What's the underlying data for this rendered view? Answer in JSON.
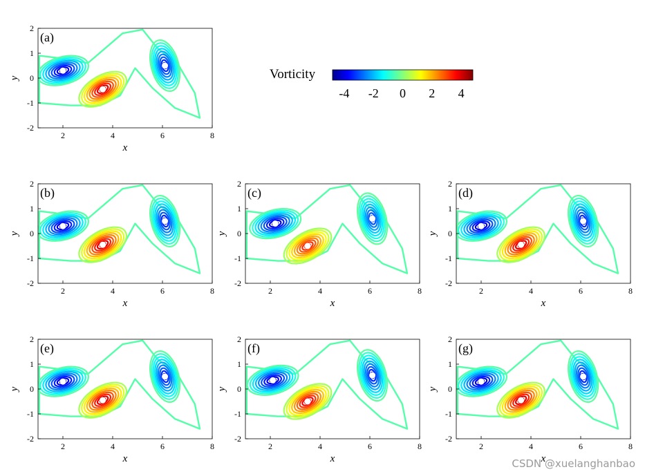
{
  "figure": {
    "colorbar": {
      "label": "Vorticity",
      "ticks": [
        "-4",
        "-2",
        "0",
        "2",
        "4"
      ],
      "range": [
        -4.8,
        4.8
      ],
      "colormap": "jet",
      "stops": [
        "#00008f",
        "#0000ff",
        "#00ffff",
        "#ffff00",
        "#ff0000",
        "#800000"
      ]
    },
    "watermark": "CSDN @xuelanghanbao"
  },
  "chart_data": [
    {
      "panel": "(a)",
      "type": "contour",
      "xlabel": "x",
      "ylabel": "y",
      "xlim": [
        1,
        8
      ],
      "ylim": [
        -2,
        2
      ],
      "xticks": [
        "2",
        "4",
        "6",
        "8"
      ],
      "yticks": [
        "2",
        "1",
        "0",
        "-1",
        "-2"
      ],
      "features": [
        {
          "name": "negative vortex",
          "x": 2.0,
          "y": 0.3,
          "peak": -4.8
        },
        {
          "name": "positive vortex",
          "x": 3.6,
          "y": -0.45,
          "peak": 4.8
        },
        {
          "name": "negative vortex",
          "x": 6.1,
          "y": 0.5,
          "peak": -4.0
        }
      ]
    },
    {
      "panel": "(b)",
      "type": "contour",
      "xlabel": "x",
      "ylabel": "y",
      "xlim": [
        1,
        8
      ],
      "ylim": [
        -2,
        2
      ],
      "xticks": [
        "2",
        "4",
        "6",
        "8"
      ],
      "yticks": [
        "2",
        "1",
        "0",
        "-1",
        "-2"
      ],
      "features": [
        {
          "name": "negative vortex",
          "x": 2.0,
          "y": 0.3,
          "peak": -4.8
        },
        {
          "name": "positive vortex",
          "x": 3.6,
          "y": -0.45,
          "peak": 4.8
        },
        {
          "name": "negative vortex",
          "x": 6.1,
          "y": 0.5,
          "peak": -4.0
        }
      ]
    },
    {
      "panel": "(c)",
      "type": "contour",
      "xlabel": "x",
      "ylabel": "y",
      "xlim": [
        1,
        8
      ],
      "ylim": [
        -2,
        2
      ],
      "xticks": [
        "2",
        "4",
        "6",
        "8"
      ],
      "yticks": [
        "2",
        "1",
        "0",
        "-1",
        "-2"
      ],
      "features": [
        {
          "name": "negative vortex",
          "x": 2.2,
          "y": 0.4,
          "peak": -4.8
        },
        {
          "name": "positive vortex",
          "x": 3.5,
          "y": -0.5,
          "peak": 4.0
        },
        {
          "name": "negative vortex",
          "x": 6.1,
          "y": 0.6,
          "peak": -3.5
        }
      ]
    },
    {
      "panel": "(d)",
      "type": "contour",
      "xlabel": "x",
      "ylabel": "y",
      "xlim": [
        1,
        8
      ],
      "ylim": [
        -2,
        2
      ],
      "xticks": [
        "2",
        "4",
        "6",
        "8"
      ],
      "yticks": [
        "2",
        "1",
        "0",
        "-1",
        "-2"
      ],
      "features": [
        {
          "name": "negative vortex",
          "x": 2.0,
          "y": 0.3,
          "peak": -4.8
        },
        {
          "name": "positive vortex",
          "x": 3.6,
          "y": -0.45,
          "peak": 4.8
        },
        {
          "name": "negative vortex",
          "x": 6.1,
          "y": 0.5,
          "peak": -4.0
        }
      ]
    },
    {
      "panel": "(e)",
      "type": "contour",
      "xlabel": "x",
      "ylabel": "y",
      "xlim": [
        1,
        8
      ],
      "ylim": [
        -2,
        2
      ],
      "xticks": [
        "2",
        "4",
        "6",
        "8"
      ],
      "yticks": [
        "2",
        "1",
        "0",
        "-1",
        "-2"
      ],
      "features": [
        {
          "name": "negative vortex",
          "x": 2.0,
          "y": 0.3,
          "peak": -4.8
        },
        {
          "name": "positive vortex",
          "x": 3.6,
          "y": -0.45,
          "peak": 4.8
        },
        {
          "name": "negative vortex",
          "x": 6.1,
          "y": 0.5,
          "peak": -4.0
        }
      ]
    },
    {
      "panel": "(f)",
      "type": "contour",
      "xlabel": "x",
      "ylabel": "y",
      "xlim": [
        1,
        8
      ],
      "ylim": [
        -2,
        2
      ],
      "xticks": [
        "2",
        "4",
        "6",
        "8"
      ],
      "yticks": [
        "2",
        "1",
        "0",
        "-1",
        "-2"
      ],
      "features": [
        {
          "name": "negative vortex",
          "x": 2.1,
          "y": 0.35,
          "peak": -4.8
        },
        {
          "name": "positive vortex",
          "x": 3.5,
          "y": -0.5,
          "peak": 4.5
        },
        {
          "name": "negative vortex",
          "x": 6.1,
          "y": 0.55,
          "peak": -4.0
        }
      ]
    },
    {
      "panel": "(g)",
      "type": "contour",
      "xlabel": "x",
      "ylabel": "y",
      "xlim": [
        1,
        8
      ],
      "ylim": [
        -2,
        2
      ],
      "xticks": [
        "2",
        "4",
        "6",
        "8"
      ],
      "yticks": [
        "2",
        "1",
        "0",
        "-1",
        "-2"
      ],
      "features": [
        {
          "name": "negative vortex",
          "x": 2.0,
          "y": 0.3,
          "peak": -4.8
        },
        {
          "name": "positive vortex",
          "x": 3.6,
          "y": -0.45,
          "peak": 4.8
        },
        {
          "name": "negative vortex",
          "x": 6.1,
          "y": 0.5,
          "peak": -4.0
        }
      ]
    }
  ]
}
